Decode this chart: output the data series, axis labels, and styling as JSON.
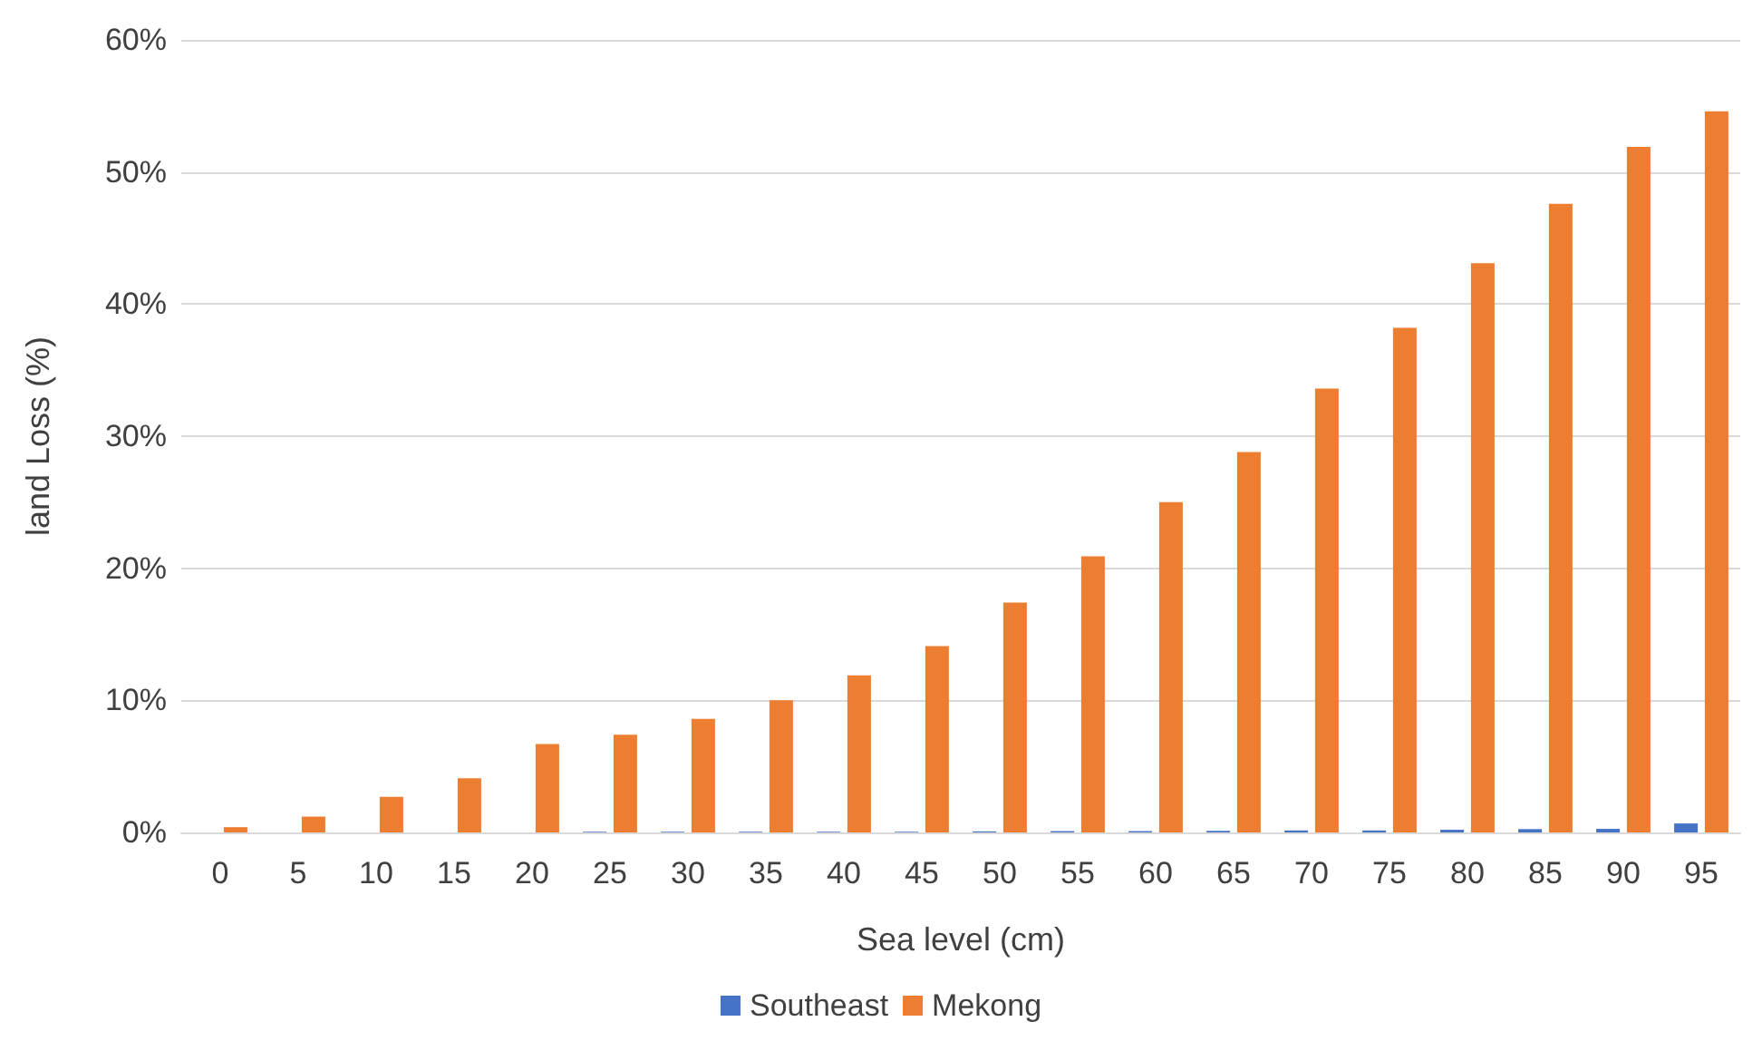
{
  "chart_data": {
    "type": "bar",
    "xlabel": "Sea level (cm)",
    "ylabel": "land Loss (%)",
    "categories": [
      "0",
      "5",
      "10",
      "15",
      "20",
      "25",
      "30",
      "35",
      "40",
      "45",
      "50",
      "55",
      "60",
      "65",
      "70",
      "75",
      "80",
      "85",
      "90",
      "95"
    ],
    "series": [
      {
        "name": "Southeast",
        "color": "#4472c4",
        "values": [
          0,
          0,
          0,
          0,
          0,
          0.05,
          0.05,
          0.05,
          0.05,
          0.05,
          0.08,
          0.1,
          0.1,
          0.12,
          0.15,
          0.15,
          0.2,
          0.25,
          0.27,
          0.68
        ]
      },
      {
        "name": "Mekong",
        "color": "#ed7d31",
        "values": [
          0.4,
          1.2,
          2.7,
          4.1,
          6.7,
          7.4,
          8.6,
          10.0,
          11.9,
          14.1,
          17.4,
          20.9,
          25.0,
          28.8,
          33.6,
          38.2,
          43.1,
          47.6,
          51.9,
          54.6
        ]
      }
    ],
    "ylim": [
      0,
      60
    ],
    "yticks": [
      {
        "value": 0,
        "label": "0%"
      },
      {
        "value": 10,
        "label": "10%"
      },
      {
        "value": 20,
        "label": "20%"
      },
      {
        "value": 30,
        "label": "30%"
      },
      {
        "value": 40,
        "label": "40%"
      },
      {
        "value": 50,
        "label": "50%"
      },
      {
        "value": 60,
        "label": "60%"
      }
    ],
    "grid": "y",
    "legend": "bottom"
  }
}
